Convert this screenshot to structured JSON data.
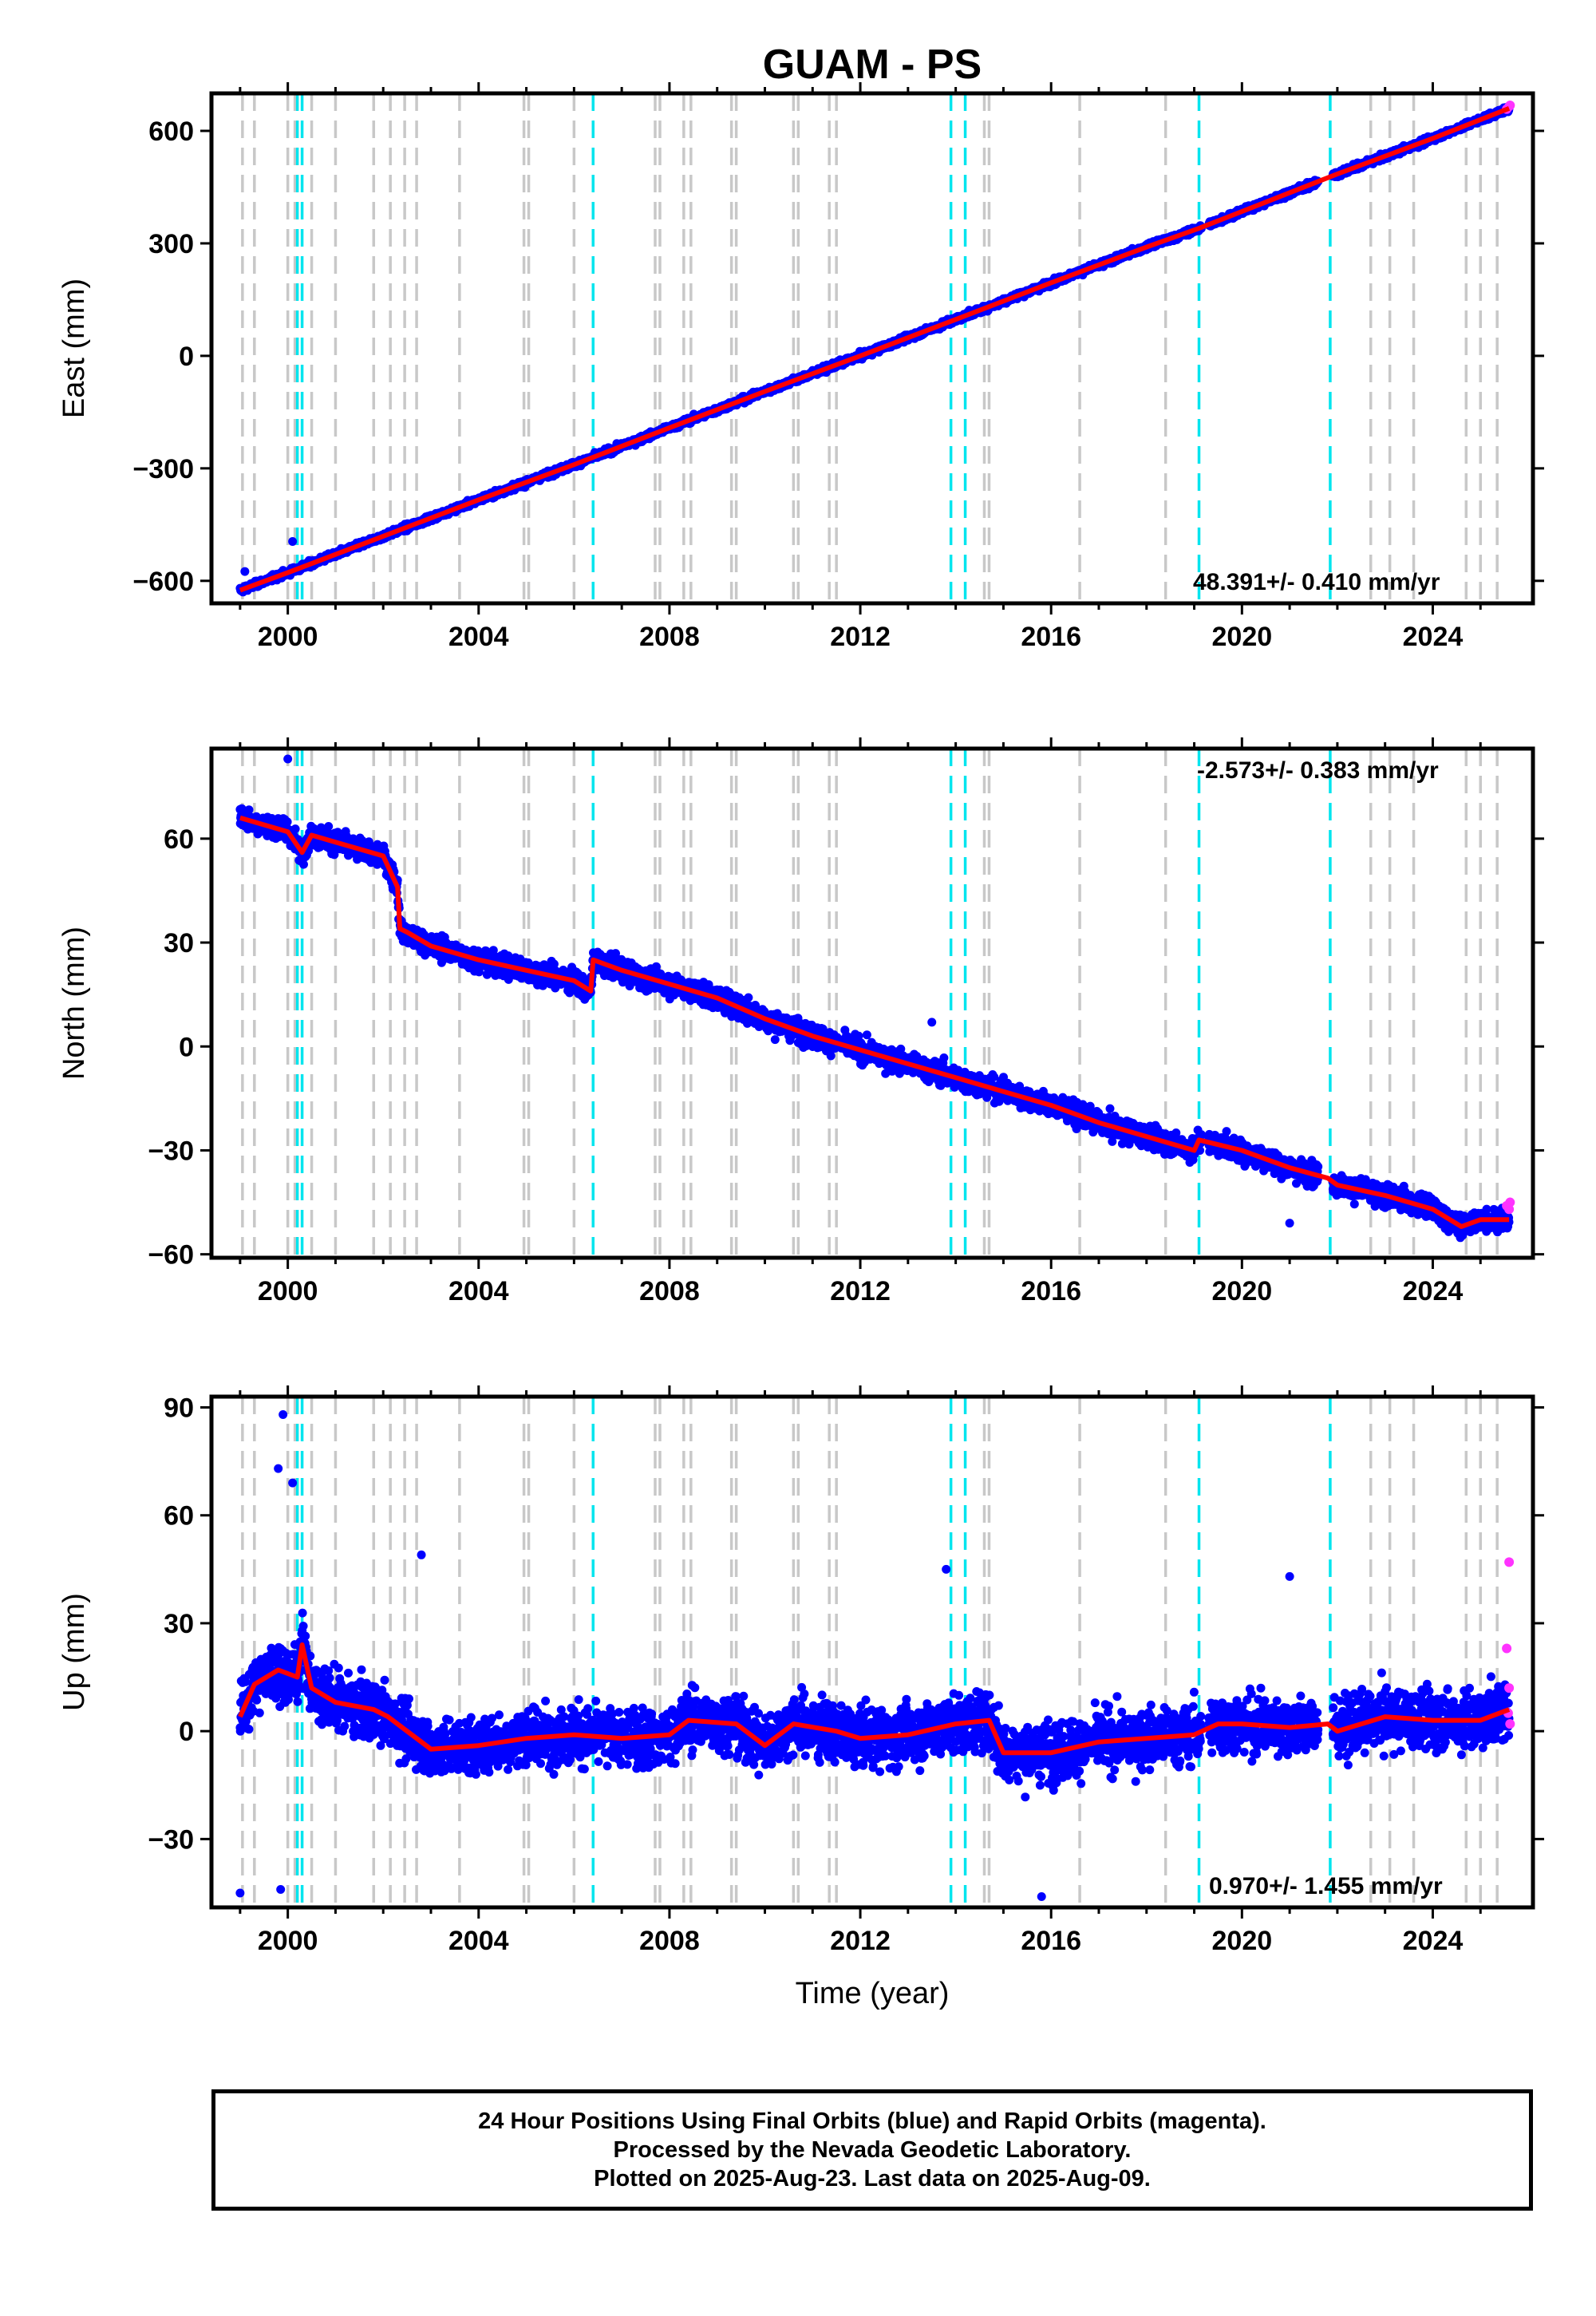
{
  "title": "GUAM - PS",
  "colors": {
    "final": "#0000ff",
    "rapid": "#ff33ff",
    "model": "#ff0000",
    "break_gray": "#c8c8c8",
    "break_cyan": "#00e5ee"
  },
  "x_tick_labels": [
    "2000",
    "2004",
    "2008",
    "2012",
    "2016",
    "2020",
    "2024"
  ],
  "xlabel": "Time (year)",
  "breaks": {
    "gray": [
      1999.05,
      1999.3,
      2000.0,
      2000.15,
      2000.5,
      2001.0,
      2001.8,
      2002.15,
      2002.45,
      2002.7,
      2003.6,
      2004.95,
      2005.05,
      2006.0,
      2007.7,
      2007.8,
      2008.3,
      2008.45,
      2009.3,
      2009.4,
      2010.6,
      2010.7,
      2011.35,
      2011.5,
      2014.6,
      2014.7,
      2016.6,
      2018.4,
      2022.7,
      2023.1,
      2023.6,
      2024.7,
      2025.0,
      2025.35
    ],
    "cyan": [
      2000.2,
      2000.3,
      2006.4,
      2013.9,
      2014.2,
      2019.1,
      2021.85
    ]
  },
  "footer": {
    "line1": "24 Hour Positions Using Final Orbits (blue) and Rapid Orbits (magenta).",
    "line2": "Processed by the Nevada Geodetic Laboratory.",
    "line3": "Plotted on 2025-Aug-23. Last data on 2025-Aug-09."
  },
  "chart_data": [
    {
      "type": "scatter",
      "ylabel": "East (mm)",
      "rate": "48.391+/- 0.410 mm/yr",
      "xlim": [
        1998.4,
        2026.1
      ],
      "ylim": [
        -660,
        700
      ],
      "y_ticks": [
        -600,
        -300,
        0,
        300,
        600
      ],
      "y_tick_labels": [
        "−600",
        "−300",
        "0",
        "300",
        "600"
      ],
      "series": [
        {
          "x": [
            1999.0,
            2000.0,
            2002.0,
            2004.0,
            2006.0,
            2008.0,
            2010.0,
            2012.0,
            2014.0,
            2016.0,
            2018.0,
            2019.1,
            2020.0,
            2022.0,
            2024.0,
            2025.6
          ],
          "values": [
            -625,
            -578,
            -481,
            -384,
            -290,
            -192,
            -95,
            0,
            97,
            195,
            290,
            340,
            385,
            485,
            580,
            660
          ]
        }
      ],
      "outliers": [
        {
          "x": 2000.1,
          "y": -495
        },
        {
          "x": 1999.1,
          "y": -575
        }
      ],
      "scatter_band": 10,
      "rapid_tail": [
        {
          "x": 2025.55,
          "y": 658
        },
        {
          "x": 2025.6,
          "y": 665
        },
        {
          "x": 2025.62,
          "y": 668
        }
      ]
    },
    {
      "type": "scatter",
      "ylabel": "North (mm)",
      "rate": "-2.573+/- 0.383 mm/yr",
      "xlim": [
        1998.4,
        2026.1
      ],
      "ylim": [
        -61,
        86
      ],
      "y_ticks": [
        -60,
        -30,
        0,
        30,
        60
      ],
      "y_tick_labels": [
        "−60",
        "−30",
        "0",
        "30",
        "60"
      ],
      "series": [
        {
          "x": [
            1999.0,
            1999.5,
            2000.0,
            2000.3,
            2000.5,
            2001.0,
            2001.5,
            2002.0,
            2002.3,
            2002.35,
            2002.5,
            2003.0,
            2004.0,
            2005.0,
            2006.0,
            2006.35,
            2006.4,
            2007.0,
            2008.0,
            2009.0,
            2010.0,
            2011.0,
            2012.0,
            2013.0,
            2014.0,
            2015.0,
            2016.0,
            2017.0,
            2018.0,
            2019.0,
            2019.1,
            2020.0,
            2021.0,
            2021.8,
            2022.0,
            2023.0,
            2024.0,
            2024.6,
            2025.0,
            2025.6
          ],
          "values": [
            66,
            64,
            62,
            56,
            61,
            59,
            57,
            55,
            46,
            34,
            33,
            29,
            25,
            22,
            19,
            16,
            25,
            22,
            18,
            14,
            8,
            3,
            -1,
            -5,
            -9,
            -13,
            -17,
            -22,
            -26,
            -30,
            -27,
            -30,
            -35,
            -38,
            -40,
            -43,
            -47,
            -52,
            -50,
            -50
          ]
        }
      ],
      "outliers": [
        {
          "x": 2000.0,
          "y": 83
        },
        {
          "x": 2013.5,
          "y": 7
        },
        {
          "x": 2021.0,
          "y": -51
        }
      ],
      "scatter_band": 4,
      "rapid_tail": [
        {
          "x": 2025.55,
          "y": -46
        },
        {
          "x": 2025.6,
          "y": -47
        },
        {
          "x": 2025.62,
          "y": -45
        }
      ]
    },
    {
      "type": "scatter",
      "ylabel": "Up (mm)",
      "rate": "0.970+/- 1.455 mm/yr",
      "xlabel": "Time (year)",
      "xlim": [
        1998.4,
        2026.1
      ],
      "ylim": [
        -49,
        93
      ],
      "y_ticks": [
        -30,
        0,
        30,
        60,
        90
      ],
      "y_tick_labels": [
        "−30",
        "0",
        "30",
        "60",
        "90"
      ],
      "series": [
        {
          "x": [
            1999.0,
            1999.3,
            1999.8,
            2000.2,
            2000.3,
            2000.5,
            2001.0,
            2001.8,
            2002.1,
            2002.5,
            2003.0,
            2004.0,
            2005.0,
            2006.0,
            2007.0,
            2008.0,
            2008.4,
            2009.4,
            2010.0,
            2010.6,
            2011.5,
            2012.0,
            2013.0,
            2014.0,
            2014.7,
            2015.0,
            2016.0,
            2017.0,
            2018.0,
            2019.0,
            2019.5,
            2020.0,
            2021.0,
            2021.8,
            2022.0,
            2023.0,
            2024.0,
            2025.0,
            2025.6
          ],
          "values": [
            4,
            13,
            17,
            15,
            24,
            12,
            8,
            6,
            4,
            0,
            -5,
            -4,
            -2,
            -1,
            -2,
            -1,
            3,
            2,
            -4,
            2,
            0,
            -2,
            -1,
            2,
            3,
            -6,
            -6,
            -3,
            -2,
            -1,
            2,
            2,
            1,
            2,
            0,
            4,
            3,
            3,
            6
          ]
        }
      ],
      "outliers": [
        {
          "x": 1999.9,
          "y": 88
        },
        {
          "x": 1999.8,
          "y": 73
        },
        {
          "x": 2002.8,
          "y": 49
        },
        {
          "x": 2013.8,
          "y": 45
        },
        {
          "x": 2015.8,
          "y": -46
        },
        {
          "x": 1999.0,
          "y": -45
        },
        {
          "x": 2021.0,
          "y": 43
        },
        {
          "x": 1999.85,
          "y": -44
        },
        {
          "x": 2000.1,
          "y": 69
        }
      ],
      "scatter_band": 10,
      "rapid_tail": [
        {
          "x": 2025.6,
          "y": 47
        },
        {
          "x": 2025.55,
          "y": 23
        },
        {
          "x": 2025.6,
          "y": 12
        },
        {
          "x": 2025.58,
          "y": 5
        },
        {
          "x": 2025.62,
          "y": 2
        }
      ]
    }
  ]
}
